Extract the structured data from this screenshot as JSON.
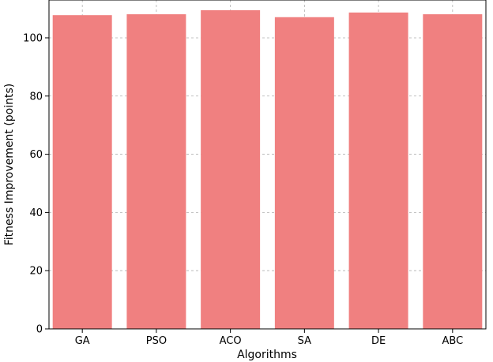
{
  "chart_data": {
    "type": "bar",
    "title": "",
    "xlabel": "Algorithms",
    "ylabel": "Fitness Improvement (points)",
    "categories": [
      "GA",
      "PSO",
      "ACO",
      "SA",
      "DE",
      "ABC"
    ],
    "values": [
      107.8,
      108.1,
      109.5,
      107.1,
      108.7,
      108.1
    ],
    "ylim": [
      0,
      113
    ],
    "yticks": [
      0,
      20,
      40,
      60,
      80,
      100
    ],
    "bar_color": "#f08080",
    "grid": true,
    "legend": "none"
  }
}
